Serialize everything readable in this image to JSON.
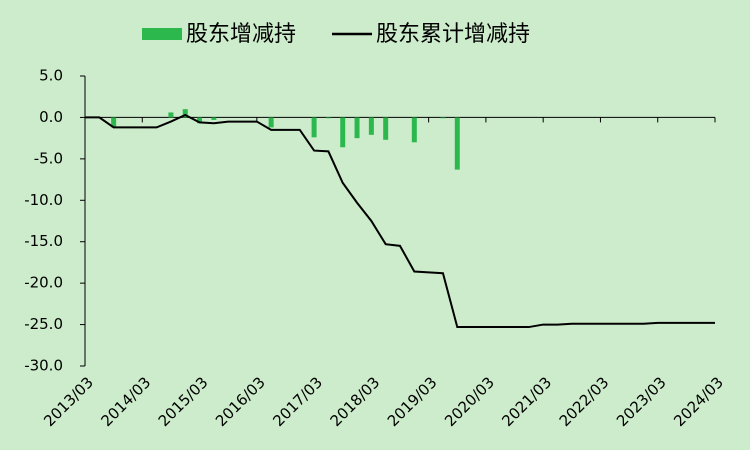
{
  "chart_data": {
    "type": "bar-line",
    "categories": [
      "2013/03",
      null,
      null,
      null,
      "2014/03",
      null,
      null,
      null,
      "2015/03",
      null,
      null,
      null,
      "2016/03",
      null,
      null,
      null,
      "2017/03",
      null,
      null,
      null,
      "2018/03",
      null,
      null,
      null,
      "2019/03",
      null,
      null,
      null,
      "2020/03",
      null,
      null,
      null,
      "2021/03",
      null,
      null,
      null,
      "2022/03",
      null,
      null,
      null,
      "2023/03",
      null,
      null,
      null,
      "2024/03"
    ],
    "series": [
      {
        "name": "股东增减持",
        "type": "bar",
        "color": "#2db84d",
        "values": [
          0,
          0,
          -1.2,
          0,
          0,
          0,
          0.6,
          1.0,
          -0.7,
          -0.3,
          0,
          0,
          0,
          -1.2,
          0,
          0,
          -2.4,
          -0.1,
          -3.6,
          -2.5,
          -2.1,
          -2.7,
          0,
          -3.0,
          0,
          -0.1,
          -6.3,
          0,
          0,
          0,
          0,
          0,
          0,
          0,
          0,
          0,
          0,
          0,
          0,
          0,
          0,
          0,
          0,
          0,
          0
        ]
      },
      {
        "name": "股东累计增减持",
        "type": "line",
        "color": "#000000",
        "values": [
          0,
          0,
          -1.2,
          -1.2,
          -1.2,
          -1.2,
          -0.5,
          0.3,
          -0.6,
          -0.7,
          -0.5,
          -0.5,
          -0.5,
          -1.5,
          -1.5,
          -1.5,
          -4.0,
          -4.1,
          -7.9,
          -10.3,
          -12.5,
          -15.3,
          -15.5,
          -18.6,
          -18.7,
          -18.8,
          -25.3,
          -25.3,
          -25.3,
          -25.3,
          -25.3,
          -25.3,
          -25.0,
          -25.0,
          -24.9,
          -24.9,
          -24.9,
          -24.9,
          -24.9,
          -24.9,
          -24.8,
          -24.8,
          -24.8,
          -24.8,
          -24.8
        ]
      }
    ],
    "ylim": [
      -30,
      5
    ],
    "yticks": [
      {
        "value": 5,
        "label": "5.0"
      },
      {
        "value": 0,
        "label": "0.0"
      },
      {
        "value": -5,
        "label": "-5.0"
      },
      {
        "value": -10,
        "label": "-10.0"
      },
      {
        "value": -15,
        "label": "-15.0"
      },
      {
        "value": -20,
        "label": "-20.0"
      },
      {
        "value": -25,
        "label": "-25.0"
      },
      {
        "value": -30,
        "label": "-30.0"
      }
    ],
    "legend": "top"
  }
}
